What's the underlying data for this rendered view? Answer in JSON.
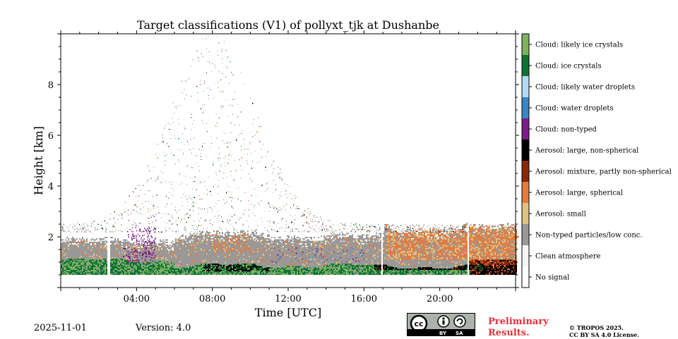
{
  "chart_data": {
    "type": "heatmap",
    "title": "Target classifications (V1) of pollyxt_tjk at Dushanbe",
    "xlabel": "Time [UTC]",
    "ylabel": "Height [km]",
    "xlim_hours": [
      0,
      24
    ],
    "ylim_km": [
      0,
      10
    ],
    "x_ticks": [
      {
        "hour": 4,
        "label": "04:00"
      },
      {
        "hour": 8,
        "label": "08:00"
      },
      {
        "hour": 12,
        "label": "12:00"
      },
      {
        "hour": 16,
        "label": "16:00"
      },
      {
        "hour": 20,
        "label": "20:00"
      }
    ],
    "y_ticks": [
      {
        "km": 2,
        "label": "2"
      },
      {
        "km": 4,
        "label": "4"
      },
      {
        "km": 6,
        "label": "6"
      },
      {
        "km": 8,
        "label": "8"
      }
    ],
    "classes": [
      {
        "label": "No signal",
        "color": "#ffffff"
      },
      {
        "label": "Clean atmosphere",
        "color": "#f4f4f4"
      },
      {
        "label": "Non-typed particles/low conc.",
        "color": "#999999"
      },
      {
        "label": "Aerosol: small",
        "color": "#e0c27f"
      },
      {
        "label": "Aerosol: large, spherical",
        "color": "#e47a3e"
      },
      {
        "label": "Aerosol: mixture, partly non-spherical",
        "color": "#8a2808"
      },
      {
        "label": "Aerosol: large, non-spherical",
        "color": "#000000"
      },
      {
        "label": "Cloud: non-typed",
        "color": "#7d1c8a"
      },
      {
        "label": "Cloud: water droplets",
        "color": "#3a86c6"
      },
      {
        "label": "Cloud: likely water droplets",
        "color": "#b2daf3"
      },
      {
        "label": "Cloud: ice crystals",
        "color": "#0d7335"
      },
      {
        "label": "Cloud: likely ice crystals",
        "color": "#7db25e"
      }
    ],
    "data_gaps_hours": [
      2.5,
      16.9,
      21.45
    ]
  },
  "footer": {
    "date": "2025-11-01",
    "version": "Version: 4.0",
    "preliminary": "Preliminary Results.",
    "copyright_line1": "© TROPOS 2025.",
    "copyright_line2": "CC BY SA 4.0 License.",
    "cc_by": "BY",
    "cc_sa": "SA"
  }
}
